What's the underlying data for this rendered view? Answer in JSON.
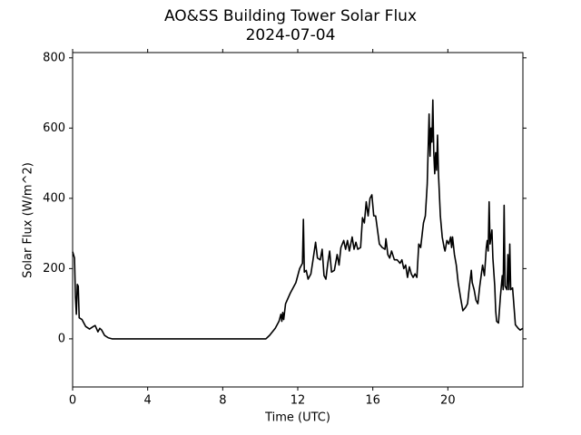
{
  "chart_data": {
    "type": "line",
    "title": "AO&SS Building Tower Solar Flux",
    "subtitle": "2024-07-04",
    "x_label": "Time (UTC)",
    "y_label": "Solar Flux (W/m^2)",
    "color": "#000000",
    "x": [
      0,
      0.1,
      0.15,
      0.2,
      0.25,
      0.3,
      0.35,
      0.5,
      0.7,
      0.9,
      1.1,
      1.2,
      1.35,
      1.45,
      1.55,
      1.7,
      1.9,
      2.1,
      10.3,
      10.5,
      10.8,
      11.0,
      11.1,
      11.15,
      11.2,
      11.25,
      11.35,
      11.6,
      11.9,
      12.1,
      12.25,
      12.3,
      12.35,
      12.45,
      12.55,
      12.7,
      12.8,
      12.95,
      13.05,
      13.2,
      13.3,
      13.4,
      13.5,
      13.6,
      13.7,
      13.8,
      13.95,
      14.1,
      14.2,
      14.3,
      14.45,
      14.55,
      14.65,
      14.75,
      14.9,
      15.0,
      15.1,
      15.2,
      15.35,
      15.45,
      15.55,
      15.65,
      15.75,
      15.85,
      15.95,
      16.05,
      16.15,
      16.35,
      16.5,
      16.65,
      16.7,
      16.8,
      16.9,
      17.0,
      17.15,
      17.3,
      17.45,
      17.55,
      17.65,
      17.75,
      17.85,
      17.95,
      18.05,
      18.15,
      18.25,
      18.35,
      18.45,
      18.55,
      18.7,
      18.8,
      18.9,
      19.0,
      19.05,
      19.1,
      19.15,
      19.2,
      19.25,
      19.3,
      19.35,
      19.4,
      19.45,
      19.5,
      19.6,
      19.7,
      19.8,
      19.85,
      19.95,
      20.05,
      20.15,
      20.2,
      20.25,
      20.35,
      20.45,
      20.55,
      20.7,
      20.8,
      20.95,
      21.05,
      21.15,
      21.25,
      21.3,
      21.4,
      21.5,
      21.6,
      21.7,
      21.85,
      21.95,
      22.05,
      22.1,
      22.15,
      22.2,
      22.25,
      22.35,
      22.4,
      22.5,
      22.55,
      22.6,
      22.7,
      22.8,
      22.9,
      22.95,
      23.0,
      23.05,
      23.15,
      23.2,
      23.25,
      23.3,
      23.35,
      23.45,
      23.5,
      23.6,
      23.75,
      23.85,
      24.0
    ],
    "values": [
      248,
      230,
      120,
      70,
      155,
      150,
      60,
      55,
      35,
      28,
      35,
      38,
      20,
      30,
      25,
      10,
      3,
      0,
      0,
      10,
      30,
      50,
      70,
      50,
      75,
      55,
      100,
      130,
      160,
      200,
      215,
      340,
      190,
      195,
      170,
      185,
      220,
      275,
      230,
      225,
      255,
      180,
      170,
      215,
      250,
      190,
      195,
      240,
      210,
      260,
      280,
      255,
      280,
      250,
      290,
      255,
      275,
      255,
      260,
      345,
      330,
      390,
      350,
      400,
      410,
      350,
      350,
      270,
      260,
      255,
      285,
      240,
      230,
      250,
      225,
      225,
      215,
      225,
      200,
      210,
      175,
      205,
      185,
      175,
      185,
      175,
      270,
      260,
      330,
      350,
      440,
      640,
      520,
      600,
      560,
      680,
      530,
      470,
      530,
      480,
      580,
      470,
      350,
      290,
      260,
      250,
      280,
      270,
      290,
      260,
      290,
      240,
      210,
      160,
      110,
      80,
      90,
      100,
      150,
      195,
      160,
      140,
      110,
      100,
      150,
      210,
      180,
      260,
      280,
      250,
      390,
      270,
      310,
      230,
      150,
      80,
      50,
      45,
      120,
      180,
      140,
      380,
      150,
      140,
      240,
      140,
      270,
      140,
      145,
      110,
      40,
      30,
      25,
      30
    ],
    "xlim": [
      0,
      24
    ],
    "xticks": [
      0,
      4,
      8,
      12,
      16,
      20
    ],
    "ylim": [
      -137,
      815
    ],
    "yticks": [
      0,
      200,
      400,
      600,
      800
    ]
  }
}
